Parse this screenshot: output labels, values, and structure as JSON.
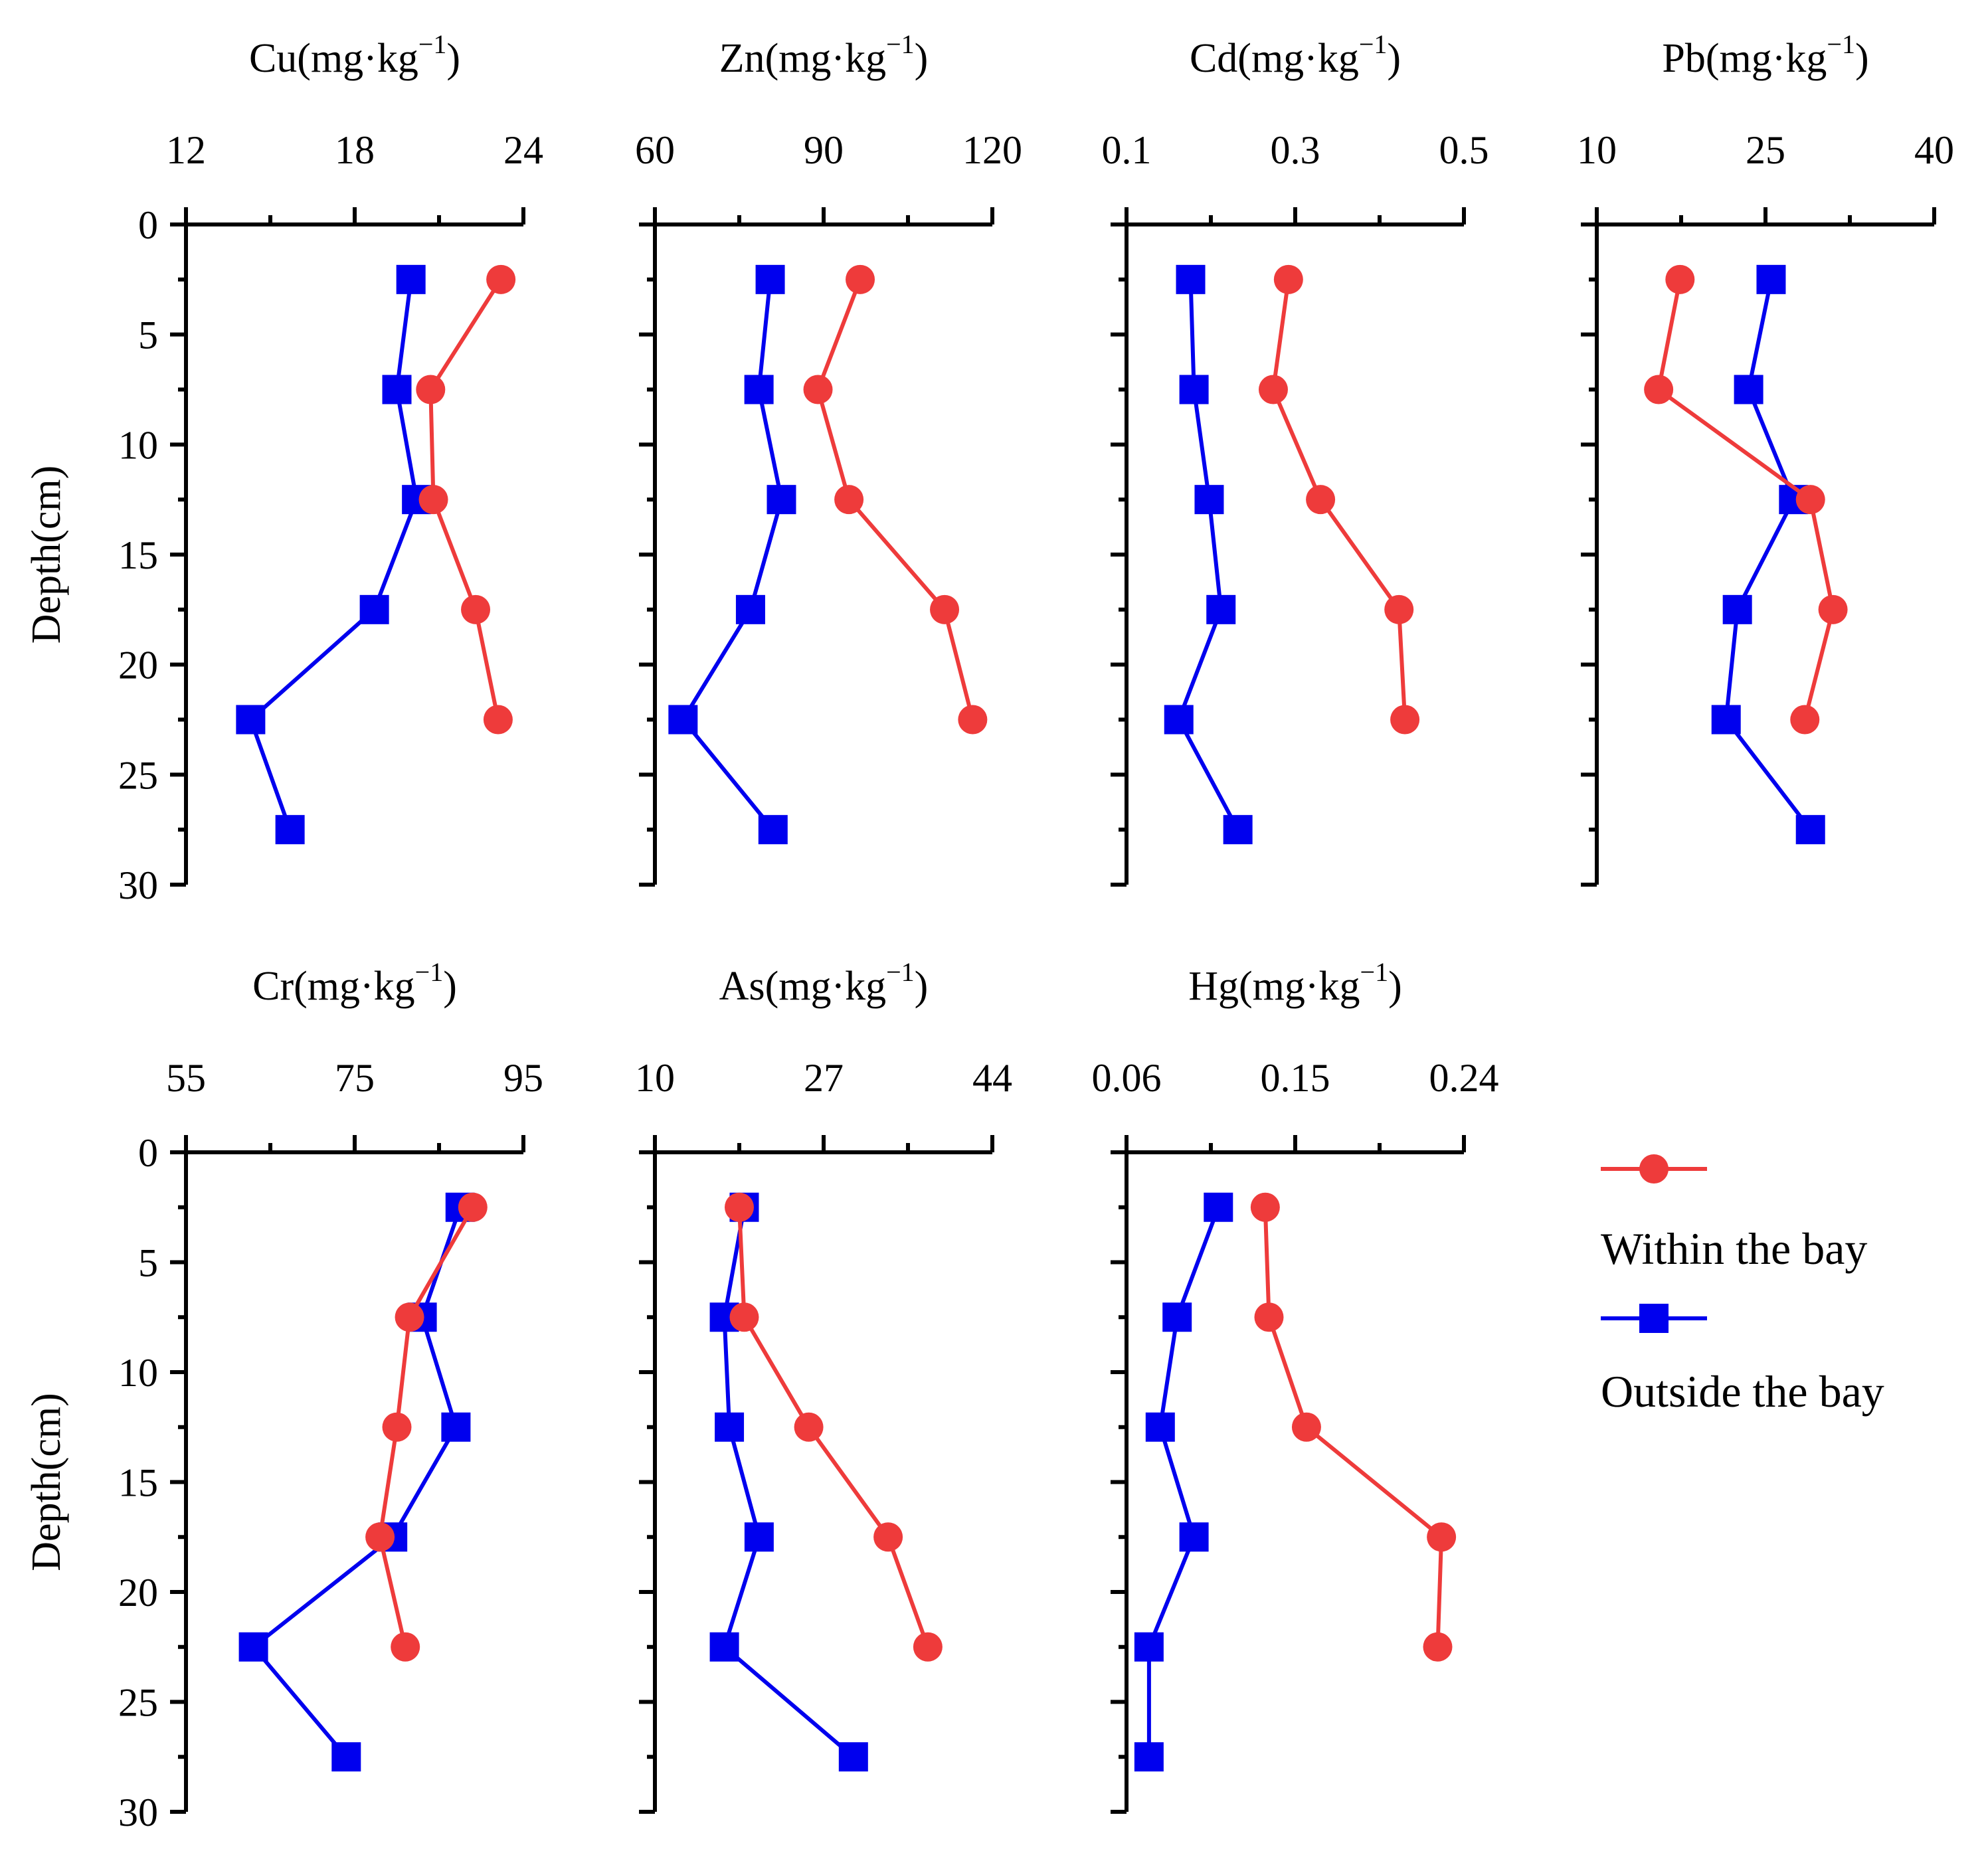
{
  "legend": {
    "within": "Within the bay",
    "outside": "Outside the bay"
  },
  "colors": {
    "within": "#ee3b3b",
    "outside": "#0000ee"
  },
  "chart_data": [
    {
      "type": "line",
      "title": "Cu(mg·kg−1)",
      "element": "Cu",
      "unit": "(mg·kg",
      "unit_exp": "−1",
      "unit_close": ")",
      "xlim": [
        12,
        24
      ],
      "xticks": [
        "12",
        "18",
        "24"
      ],
      "xminor": [
        15,
        21
      ],
      "ylabel": "Depth(cm)",
      "ylim": [
        0,
        30
      ],
      "yticks": [
        "0",
        "5",
        "10",
        "15",
        "20",
        "25",
        "30"
      ],
      "series": [
        {
          "name": "Within the bay",
          "x": [
            23.2,
            20.7,
            20.8,
            22.3,
            23.1
          ],
          "y": [
            2.5,
            7.5,
            12.5,
            17.5,
            22.5
          ]
        },
        {
          "name": "Outside the bay",
          "x": [
            20.0,
            19.5,
            20.2,
            18.7,
            14.3,
            15.7
          ],
          "y": [
            2.5,
            7.5,
            12.5,
            17.5,
            22.5,
            27.5
          ]
        }
      ]
    },
    {
      "type": "line",
      "title": "Zn(mg·kg−1)",
      "element": "Zn",
      "unit": "(mg·kg",
      "unit_exp": "−1",
      "unit_close": ")",
      "xlim": [
        60,
        120
      ],
      "xticks": [
        "60",
        "90",
        "120"
      ],
      "xminor": [
        75,
        105
      ],
      "ylabel": "Depth(cm)",
      "ylim": [
        0,
        30
      ],
      "series": [
        {
          "name": "Within the bay",
          "x": [
            96.5,
            89.0,
            94.5,
            111.5,
            116.5
          ],
          "y": [
            2.5,
            7.5,
            12.5,
            17.5,
            22.5
          ]
        },
        {
          "name": "Outside the bay",
          "x": [
            80.5,
            78.5,
            82.5,
            77.0,
            65.0,
            81.0
          ],
          "y": [
            2.5,
            7.5,
            12.5,
            17.5,
            22.5,
            27.5
          ]
        }
      ]
    },
    {
      "type": "line",
      "title": "Cd(mg·kg−1)",
      "element": "Cd",
      "unit": "(mg·kg",
      "unit_exp": "−1",
      "unit_close": ")",
      "xlim": [
        0.1,
        0.5
      ],
      "xticks": [
        "0.1",
        "0.3",
        "0.5"
      ],
      "xminor": [
        0.2,
        0.4
      ],
      "ylabel": "Depth(cm)",
      "ylim": [
        0,
        30
      ],
      "series": [
        {
          "name": "Within the bay",
          "x": [
            0.292,
            0.274,
            0.33,
            0.423,
            0.43
          ],
          "y": [
            2.5,
            7.5,
            12.5,
            17.5,
            22.5
          ]
        },
        {
          "name": "Outside the bay",
          "x": [
            0.176,
            0.18,
            0.198,
            0.212,
            0.162,
            0.232
          ],
          "y": [
            2.5,
            7.5,
            12.5,
            17.5,
            22.5,
            27.5
          ]
        }
      ]
    },
    {
      "type": "line",
      "title": "Pb(mg·kg−1)",
      "element": "Pb",
      "unit": "(mg·kg",
      "unit_exp": "−1",
      "unit_close": ")",
      "xlim": [
        10,
        40
      ],
      "xticks": [
        "10",
        "25",
        "40"
      ],
      "xminor": [
        17.5,
        32.5
      ],
      "ylabel": "Depth(cm)",
      "ylim": [
        0,
        30
      ],
      "series": [
        {
          "name": "Within the bay",
          "x": [
            17.4,
            15.5,
            29.0,
            31.0,
            28.5
          ],
          "y": [
            2.5,
            7.5,
            12.5,
            17.5,
            22.5
          ]
        },
        {
          "name": "Outside the bay",
          "x": [
            25.5,
            23.5,
            27.5,
            22.5,
            21.5,
            29.0
          ],
          "y": [
            2.5,
            7.5,
            12.5,
            17.5,
            22.5,
            27.5
          ]
        }
      ]
    },
    {
      "type": "line",
      "title": "Cr(mg·kg−1)",
      "element": "Cr",
      "unit": "(mg·kg",
      "unit_exp": "−1",
      "unit_close": ")",
      "xlim": [
        55,
        95
      ],
      "xticks": [
        "55",
        "75",
        "95"
      ],
      "xminor": [
        65,
        85
      ],
      "ylabel": "Depth(cm)",
      "ylim": [
        0,
        30
      ],
      "yticks": [
        "0",
        "5",
        "10",
        "15",
        "20",
        "25",
        "30"
      ],
      "series": [
        {
          "name": "Within the bay",
          "x": [
            89.0,
            81.5,
            80.0,
            78.0,
            81.0
          ],
          "y": [
            2.5,
            7.5,
            12.5,
            17.5,
            22.5
          ]
        },
        {
          "name": "Outside the bay",
          "x": [
            87.5,
            83.0,
            87.0,
            79.5,
            63.0,
            74.0
          ],
          "y": [
            2.5,
            7.5,
            12.5,
            17.5,
            22.5,
            27.5
          ]
        }
      ]
    },
    {
      "type": "line",
      "title": "As(mg·kg−1)",
      "element": "As",
      "unit": "(mg·kg",
      "unit_exp": "−1",
      "unit_close": ")",
      "xlim": [
        10,
        44
      ],
      "xticks": [
        "10",
        "27",
        "44"
      ],
      "xminor": [
        18.5,
        35.5
      ],
      "ylabel": "Depth(cm)",
      "ylim": [
        0,
        30
      ],
      "series": [
        {
          "name": "Within the bay",
          "x": [
            18.5,
            19.0,
            25.5,
            33.5,
            37.5
          ],
          "y": [
            2.5,
            7.5,
            12.5,
            17.5,
            22.5
          ]
        },
        {
          "name": "Outside the bay",
          "x": [
            19.0,
            17.0,
            17.5,
            20.5,
            17.0,
            30.0
          ],
          "y": [
            2.5,
            7.5,
            12.5,
            17.5,
            22.5,
            27.5
          ]
        }
      ]
    },
    {
      "type": "line",
      "title": "Hg(mg·kg−1)",
      "element": "Hg",
      "unit": "(mg·kg",
      "unit_exp": "−1",
      "unit_close": ")",
      "xlim": [
        0.06,
        0.24
      ],
      "xticks": [
        "0.06",
        "0.15",
        "0.24"
      ],
      "xminor": [
        0.105,
        0.195
      ],
      "ylabel": "Depth(cm)",
      "ylim": [
        0,
        30
      ],
      "series": [
        {
          "name": "Within the bay",
          "x": [
            0.134,
            0.136,
            0.156,
            0.228,
            0.226
          ],
          "y": [
            2.5,
            7.5,
            12.5,
            17.5,
            22.5
          ]
        },
        {
          "name": "Outside the bay",
          "x": [
            0.109,
            0.087,
            0.078,
            0.096,
            0.072,
            0.072
          ],
          "y": [
            2.5,
            7.5,
            12.5,
            17.5,
            22.5,
            27.5
          ]
        }
      ]
    }
  ]
}
